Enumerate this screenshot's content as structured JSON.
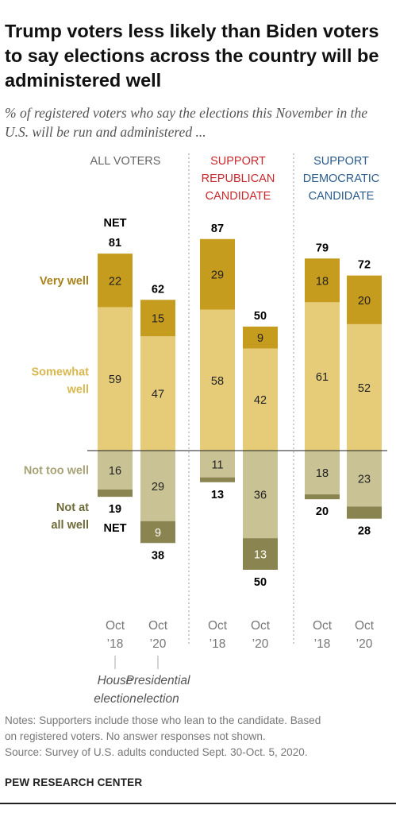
{
  "title": "Trump voters less likely than Biden voters to say elections across the country will be administered well",
  "subtitle": "% of registered voters who say the elections this November in the U.S. will be run and administered ...",
  "notes": {
    "line1": "Notes: Supporters include those who lean to the candidate. Based",
    "line2": "on registered voters. No answer responses not shown.",
    "source": "Source: Survey of U.S. adults conducted Sept. 30-Oct. 5, 2020."
  },
  "brand": "PEW RESEARCH CENTER",
  "colors": {
    "very_well": "#c69c1e",
    "somewhat_well": "#e6cc79",
    "not_too_well": "#c8c294",
    "not_at_all_well": "#8a8450",
    "very_well_label": "#a9811a",
    "somewhat_label": "#d8b84e",
    "not_too_label": "#a7a277",
    "not_at_all_label": "#6e6a3a",
    "republican": "#c8282d",
    "democratic": "#2c5c8c"
  },
  "chart_data": {
    "type": "bar",
    "stacked": "diverging",
    "groups": [
      {
        "label": [
          "ALL VOTERS"
        ],
        "color_key": ""
      },
      {
        "label": [
          "SUPPORT",
          "REPUBLICAN",
          "CANDIDATE"
        ],
        "color_key": "republican"
      },
      {
        "label": [
          "SUPPORT",
          "DEMOCRATIC",
          "CANDIDATE"
        ],
        "color_key": "democratic"
      }
    ],
    "categories": [
      [
        "Oct",
        "’18"
      ],
      [
        "Oct",
        "’20"
      ]
    ],
    "series": [
      {
        "name": "Very well",
        "values": [
          [
            22,
            15
          ],
          [
            29,
            9
          ],
          [
            18,
            20
          ]
        ]
      },
      {
        "name": "Somewhat well",
        "values": [
          [
            59,
            47
          ],
          [
            58,
            42
          ],
          [
            61,
            52
          ]
        ]
      },
      {
        "name": "Not too well",
        "values": [
          [
            16,
            29
          ],
          [
            11,
            36
          ],
          [
            18,
            23
          ]
        ]
      },
      {
        "name": "Not at all well",
        "values": [
          [
            3,
            9
          ],
          [
            2,
            13
          ],
          [
            2,
            5
          ]
        ]
      }
    ],
    "value_labels": {
      "very_well": [
        [
          "22",
          "15"
        ],
        [
          "29",
          "9"
        ],
        [
          "18",
          "20"
        ]
      ],
      "somewhat_well": [
        [
          "59",
          "47"
        ],
        [
          "58",
          "42"
        ],
        [
          "61",
          "52"
        ]
      ],
      "not_too_well": [
        [
          "16",
          "29"
        ],
        [
          "11",
          "36"
        ],
        [
          "18",
          "23"
        ]
      ],
      "not_at_all_well": [
        [
          "",
          "9"
        ],
        [
          "",
          "13"
        ],
        [
          "",
          ""
        ]
      ]
    },
    "net_positive": [
      [
        81,
        62
      ],
      [
        87,
        50
      ],
      [
        79,
        72
      ]
    ],
    "net_negative": [
      [
        19,
        38
      ],
      [
        13,
        50
      ],
      [
        20,
        28
      ]
    ],
    "net_label": "NET",
    "legend": {
      "very_well": "Very well",
      "somewhat_well": [
        "Somewhat",
        "well"
      ],
      "not_too_well": "Not too well",
      "not_at_all_well": [
        "Not at",
        "all well"
      ]
    },
    "x_annotations": [
      [
        "House",
        "election"
      ],
      [
        "Presidential",
        "election"
      ]
    ]
  }
}
